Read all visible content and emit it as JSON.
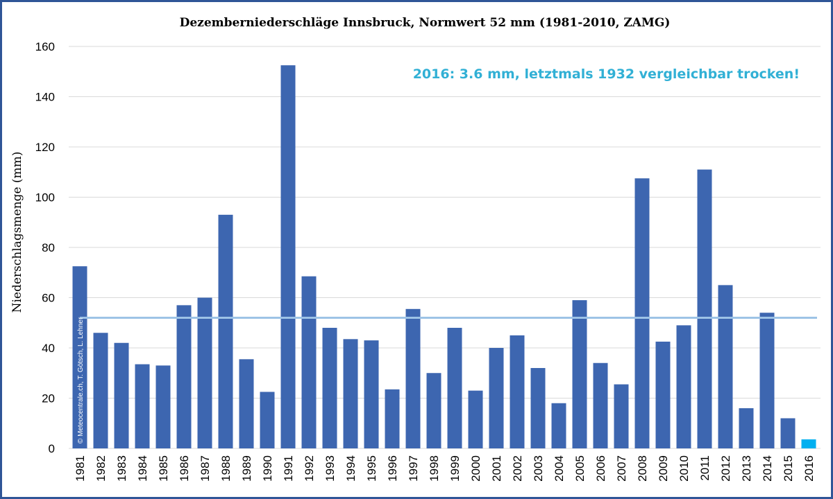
{
  "chart_data": {
    "type": "bar",
    "title": "Dezemberniederschläge Innsbruck, Normwert 52 mm (1981-2010, ZAMG)",
    "ylabel": "Niederschlagsmenge (mm)",
    "xlabel": "",
    "ylim": [
      0,
      160
    ],
    "yticks": [
      0,
      20,
      40,
      60,
      80,
      100,
      120,
      140,
      160
    ],
    "grid": "horizontal",
    "categories": [
      "1981",
      "1982",
      "1983",
      "1984",
      "1985",
      "1986",
      "1987",
      "1988",
      "1989",
      "1990",
      "1991",
      "1992",
      "1993",
      "1994",
      "1995",
      "1996",
      "1997",
      "1998",
      "1999",
      "2000",
      "2001",
      "2002",
      "2003",
      "2004",
      "2005",
      "2006",
      "2007",
      "2008",
      "2009",
      "2010",
      "2011",
      "2012",
      "2013",
      "2014",
      "2015",
      "2016"
    ],
    "values": [
      72.5,
      46,
      42,
      33.5,
      33,
      57,
      60,
      93,
      35.5,
      22.5,
      152.5,
      68.5,
      48,
      43.5,
      43,
      23.5,
      55.5,
      30,
      48,
      23,
      40,
      45,
      32,
      18,
      59,
      34,
      25.5,
      107.5,
      42.5,
      49,
      111,
      65,
      16,
      54,
      12,
      3.6
    ],
    "normal_line": 52,
    "annotation": "2016: 3.6 mm, letztmals 1932 vergleichbar trocken!",
    "copyright": "© Meteocentrale.ch, T. Götsch, L. Lehner",
    "colors": {
      "bar": "#3d66b0",
      "bar_highlight": "#00b0f0",
      "normal_line": "#9dc3e6",
      "annotation": "#31b0d5",
      "grid": "#d9d9d9",
      "border": "#2f5597"
    }
  }
}
